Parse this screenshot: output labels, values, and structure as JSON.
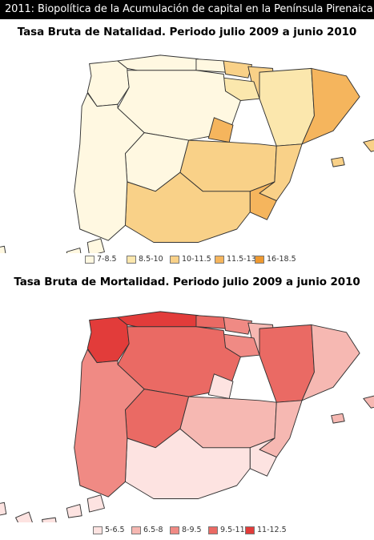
{
  "header": {
    "title": "2011: Biopolítica de la Acumulación de capital en la Península Pirenaica"
  },
  "maps": [
    {
      "title": "Tasa Bruta de Natalidad. Periodo julio 2009 a junio 2010",
      "legend": [
        {
          "label": "7-8.5",
          "color": "#fff8e1"
        },
        {
          "label": "8.5-10",
          "color": "#fbe7ad"
        },
        {
          "label": "10-11.5",
          "color": "#f9d188"
        },
        {
          "label": "11.5-13",
          "color": "#f5b55d"
        },
        {
          "label": "16-18.5",
          "color": "#ee9930"
        }
      ],
      "regions": {
        "galicia": "#fff8e1",
        "asturias": "#fff8e1",
        "cantabria": "#fff8e1",
        "pais_vasco": "#f9d188",
        "navarra": "#f9d188",
        "la_rioja": "#fbe7ad",
        "aragon": "#fbe7ad",
        "cataluna": "#f5b55d",
        "castilla_leon": "#fff8e1",
        "madrid": "#f5b55d",
        "castilla_la_mancha": "#f9d188",
        "extremadura": "#fff8e1",
        "valencia": "#f9d188",
        "murcia": "#f5b55d",
        "andalucia": "#f9d188",
        "baleares": "#f9d188",
        "canarias": "#fff8e1",
        "portugal": "#fff8e1"
      }
    },
    {
      "title": "Tasa Bruta de Mortalidad. Periodo julio 2009 a junio 2010",
      "legend": [
        {
          "label": "5-6.5",
          "color": "#fde3e1"
        },
        {
          "label": "6.5-8",
          "color": "#f6b8b2"
        },
        {
          "label": "8-9.5",
          "color": "#f08a84"
        },
        {
          "label": "9.5-11",
          "color": "#ea6a64"
        },
        {
          "label": "11-12.5",
          "color": "#e23c3a"
        }
      ],
      "regions": {
        "galicia": "#e23c3a",
        "asturias": "#e23c3a",
        "cantabria": "#ea6a64",
        "pais_vasco": "#f08a84",
        "navarra": "#f6b8b2",
        "la_rioja": "#f08a84",
        "aragon": "#ea6a64",
        "cataluna": "#f6b8b2",
        "castilla_leon": "#ea6a64",
        "madrid": "#fde3e1",
        "castilla_la_mancha": "#f6b8b2",
        "extremadura": "#ea6a64",
        "valencia": "#f6b8b2",
        "murcia": "#fde3e1",
        "andalucia": "#fde3e1",
        "baleares": "#f6b8b2",
        "canarias": "#fde3e1",
        "portugal": "#f08a84"
      }
    }
  ]
}
